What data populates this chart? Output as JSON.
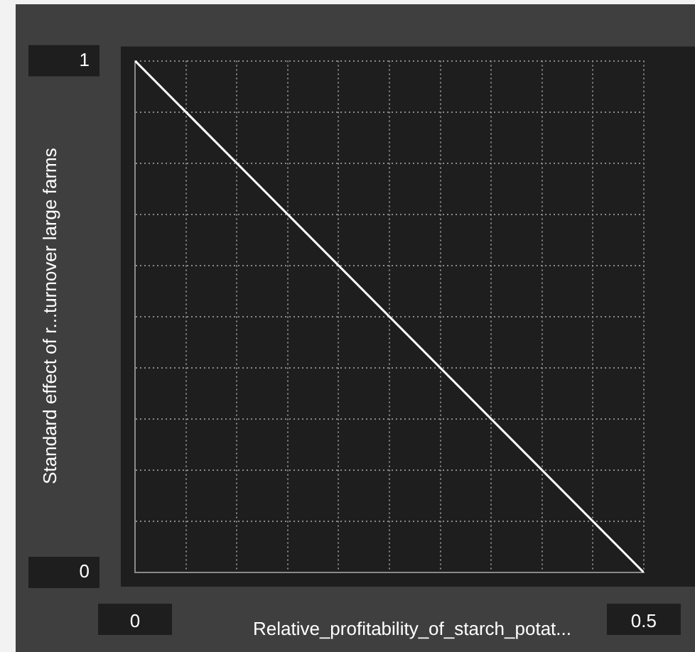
{
  "chart_data": {
    "type": "line",
    "xlabel": "Relative_profitability_of_starch_potat...",
    "ylabel": "Standard effect of r...turnover large farms",
    "x": [
      0,
      0.5
    ],
    "series": [
      {
        "color": "#ffffff",
        "values": [
          1,
          0
        ]
      }
    ],
    "xlim": [
      0,
      0.5
    ],
    "ylim": [
      0,
      1
    ],
    "xticks": [
      0,
      {
        "value": 0.05,
        "label": null
      },
      {
        "value": 0.1,
        "label": null
      },
      {
        "value": 0.15,
        "label": null
      },
      {
        "value": 0.2,
        "label": null
      },
      {
        "value": 0.25,
        "label": null
      },
      {
        "value": 0.3,
        "label": null
      },
      {
        "value": 0.35,
        "label": null
      },
      {
        "value": 0.4,
        "label": null
      },
      {
        "value": 0.45,
        "label": null
      },
      0.5
    ],
    "yticks": [
      0,
      {
        "value": 0.1,
        "label": null
      },
      {
        "value": 0.2,
        "label": null
      },
      {
        "value": 0.3,
        "label": null
      },
      {
        "value": 0.4,
        "label": null
      },
      {
        "value": 0.5,
        "label": null
      },
      {
        "value": 0.6,
        "label": null
      },
      {
        "value": 0.7,
        "label": null
      },
      {
        "value": 0.8,
        "label": null
      },
      {
        "value": 0.9,
        "label": null
      },
      1
    ],
    "grid": true,
    "legend": false,
    "marker": "none",
    "line_style": "solid"
  }
}
